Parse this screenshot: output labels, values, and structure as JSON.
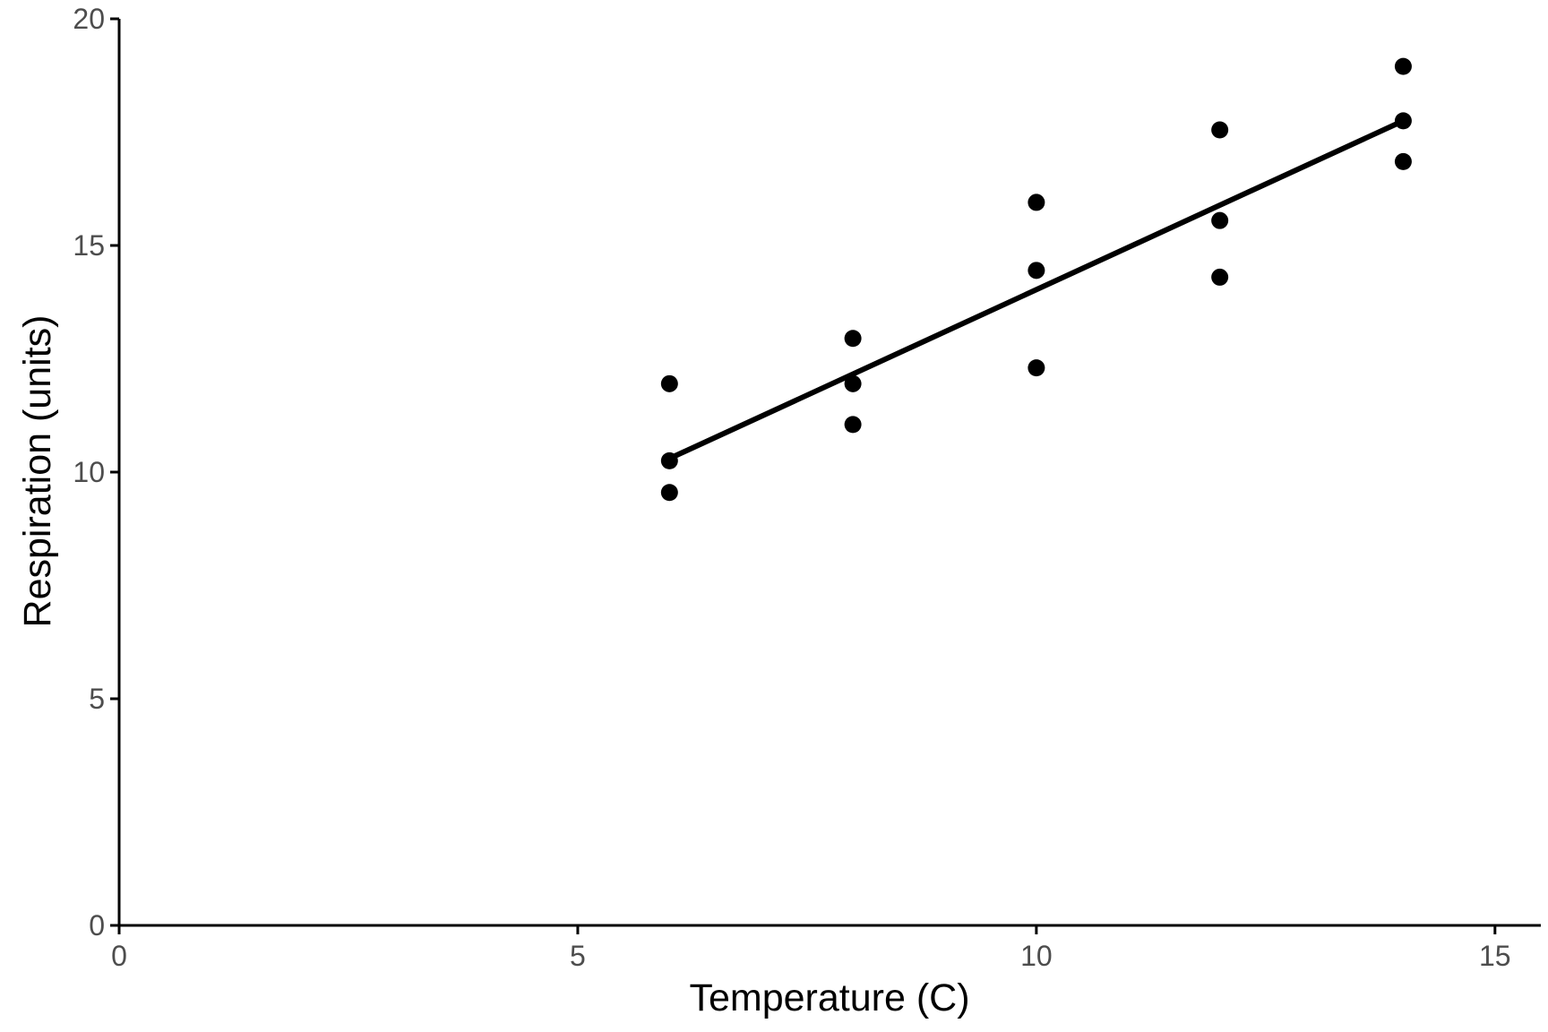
{
  "chart_data": {
    "type": "scatter",
    "title": "",
    "xlabel": "Temperature (C)",
    "ylabel": "Respiration (units)",
    "xlim": [
      0,
      15.5
    ],
    "ylim": [
      0,
      20
    ],
    "x_ticks": [
      0,
      5,
      10,
      15
    ],
    "y_ticks": [
      0,
      5,
      10,
      15,
      20
    ],
    "x_tick_labels": [
      "0",
      "5",
      "10",
      "15"
    ],
    "y_tick_labels": [
      "0",
      "5",
      "10",
      "15",
      "20"
    ],
    "grid": false,
    "legend": "none",
    "point_color": "#000000",
    "series": [
      {
        "points": [
          {
            "x": 6,
            "y": 11.95
          },
          {
            "x": 6,
            "y": 10.25
          },
          {
            "x": 6,
            "y": 9.55
          },
          {
            "x": 8,
            "y": 12.95
          },
          {
            "x": 8,
            "y": 11.95
          },
          {
            "x": 8,
            "y": 11.05
          },
          {
            "x": 10,
            "y": 15.95
          },
          {
            "x": 10,
            "y": 14.45
          },
          {
            "x": 10,
            "y": 12.3
          },
          {
            "x": 12,
            "y": 17.55
          },
          {
            "x": 12,
            "y": 15.55
          },
          {
            "x": 12,
            "y": 14.3
          },
          {
            "x": 14,
            "y": 18.95
          },
          {
            "x": 14,
            "y": 17.75
          },
          {
            "x": 14,
            "y": 16.85
          }
        ]
      }
    ],
    "fit_line": {
      "type": "linear",
      "x_range": [
        6,
        14
      ],
      "y_start": 10.3,
      "y_end": 17.75,
      "color": "#000000"
    }
  }
}
